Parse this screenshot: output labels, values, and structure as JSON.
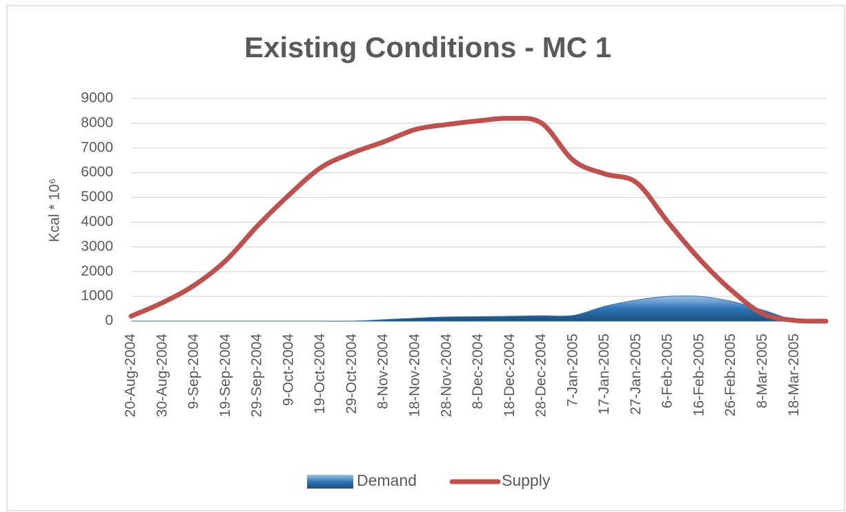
{
  "chart_data": {
    "type": "line",
    "title": "Existing Conditions - MC 1",
    "y_label": "Kcal * 10⁶",
    "categories": [
      "20-Aug-2004",
      "30-Aug-2004",
      "9-Sep-2004",
      "19-Sep-2004",
      "29-Sep-2004",
      "9-Oct-2004",
      "19-Oct-2004",
      "29-Oct-2004",
      "8-Nov-2004",
      "18-Nov-2004",
      "28-Nov-2004",
      "8-Dec-2004",
      "18-Dec-2004",
      "28-Dec-2004",
      "7-Jan-2005",
      "17-Jan-2005",
      "27-Jan-2005",
      "6-Feb-2005",
      "16-Feb-2005",
      "26-Feb-2005",
      "8-Mar-2005",
      "18-Mar-2005",
      null
    ],
    "series": [
      {
        "name": "Demand",
        "kind": "area",
        "color": "#2e75b6",
        "values": [
          0,
          0,
          0,
          0,
          0,
          0,
          0,
          0,
          60,
          120,
          170,
          180,
          200,
          220,
          230,
          600,
          850,
          1000,
          1000,
          800,
          450,
          50,
          0
        ]
      },
      {
        "name": "Supply",
        "kind": "line",
        "color": "#c0504d",
        "values": [
          200,
          750,
          1450,
          2450,
          3850,
          5100,
          6200,
          6800,
          7250,
          7750,
          7950,
          8100,
          8200,
          8000,
          6500,
          5950,
          5600,
          4000,
          2500,
          1250,
          300,
          30,
          0
        ]
      }
    ],
    "ylim": [
      0,
      9000
    ],
    "yticks": [
      0,
      1000,
      2000,
      3000,
      4000,
      5000,
      6000,
      7000,
      8000,
      9000
    ],
    "grid": true,
    "smooth": true,
    "legend": "bottom"
  }
}
